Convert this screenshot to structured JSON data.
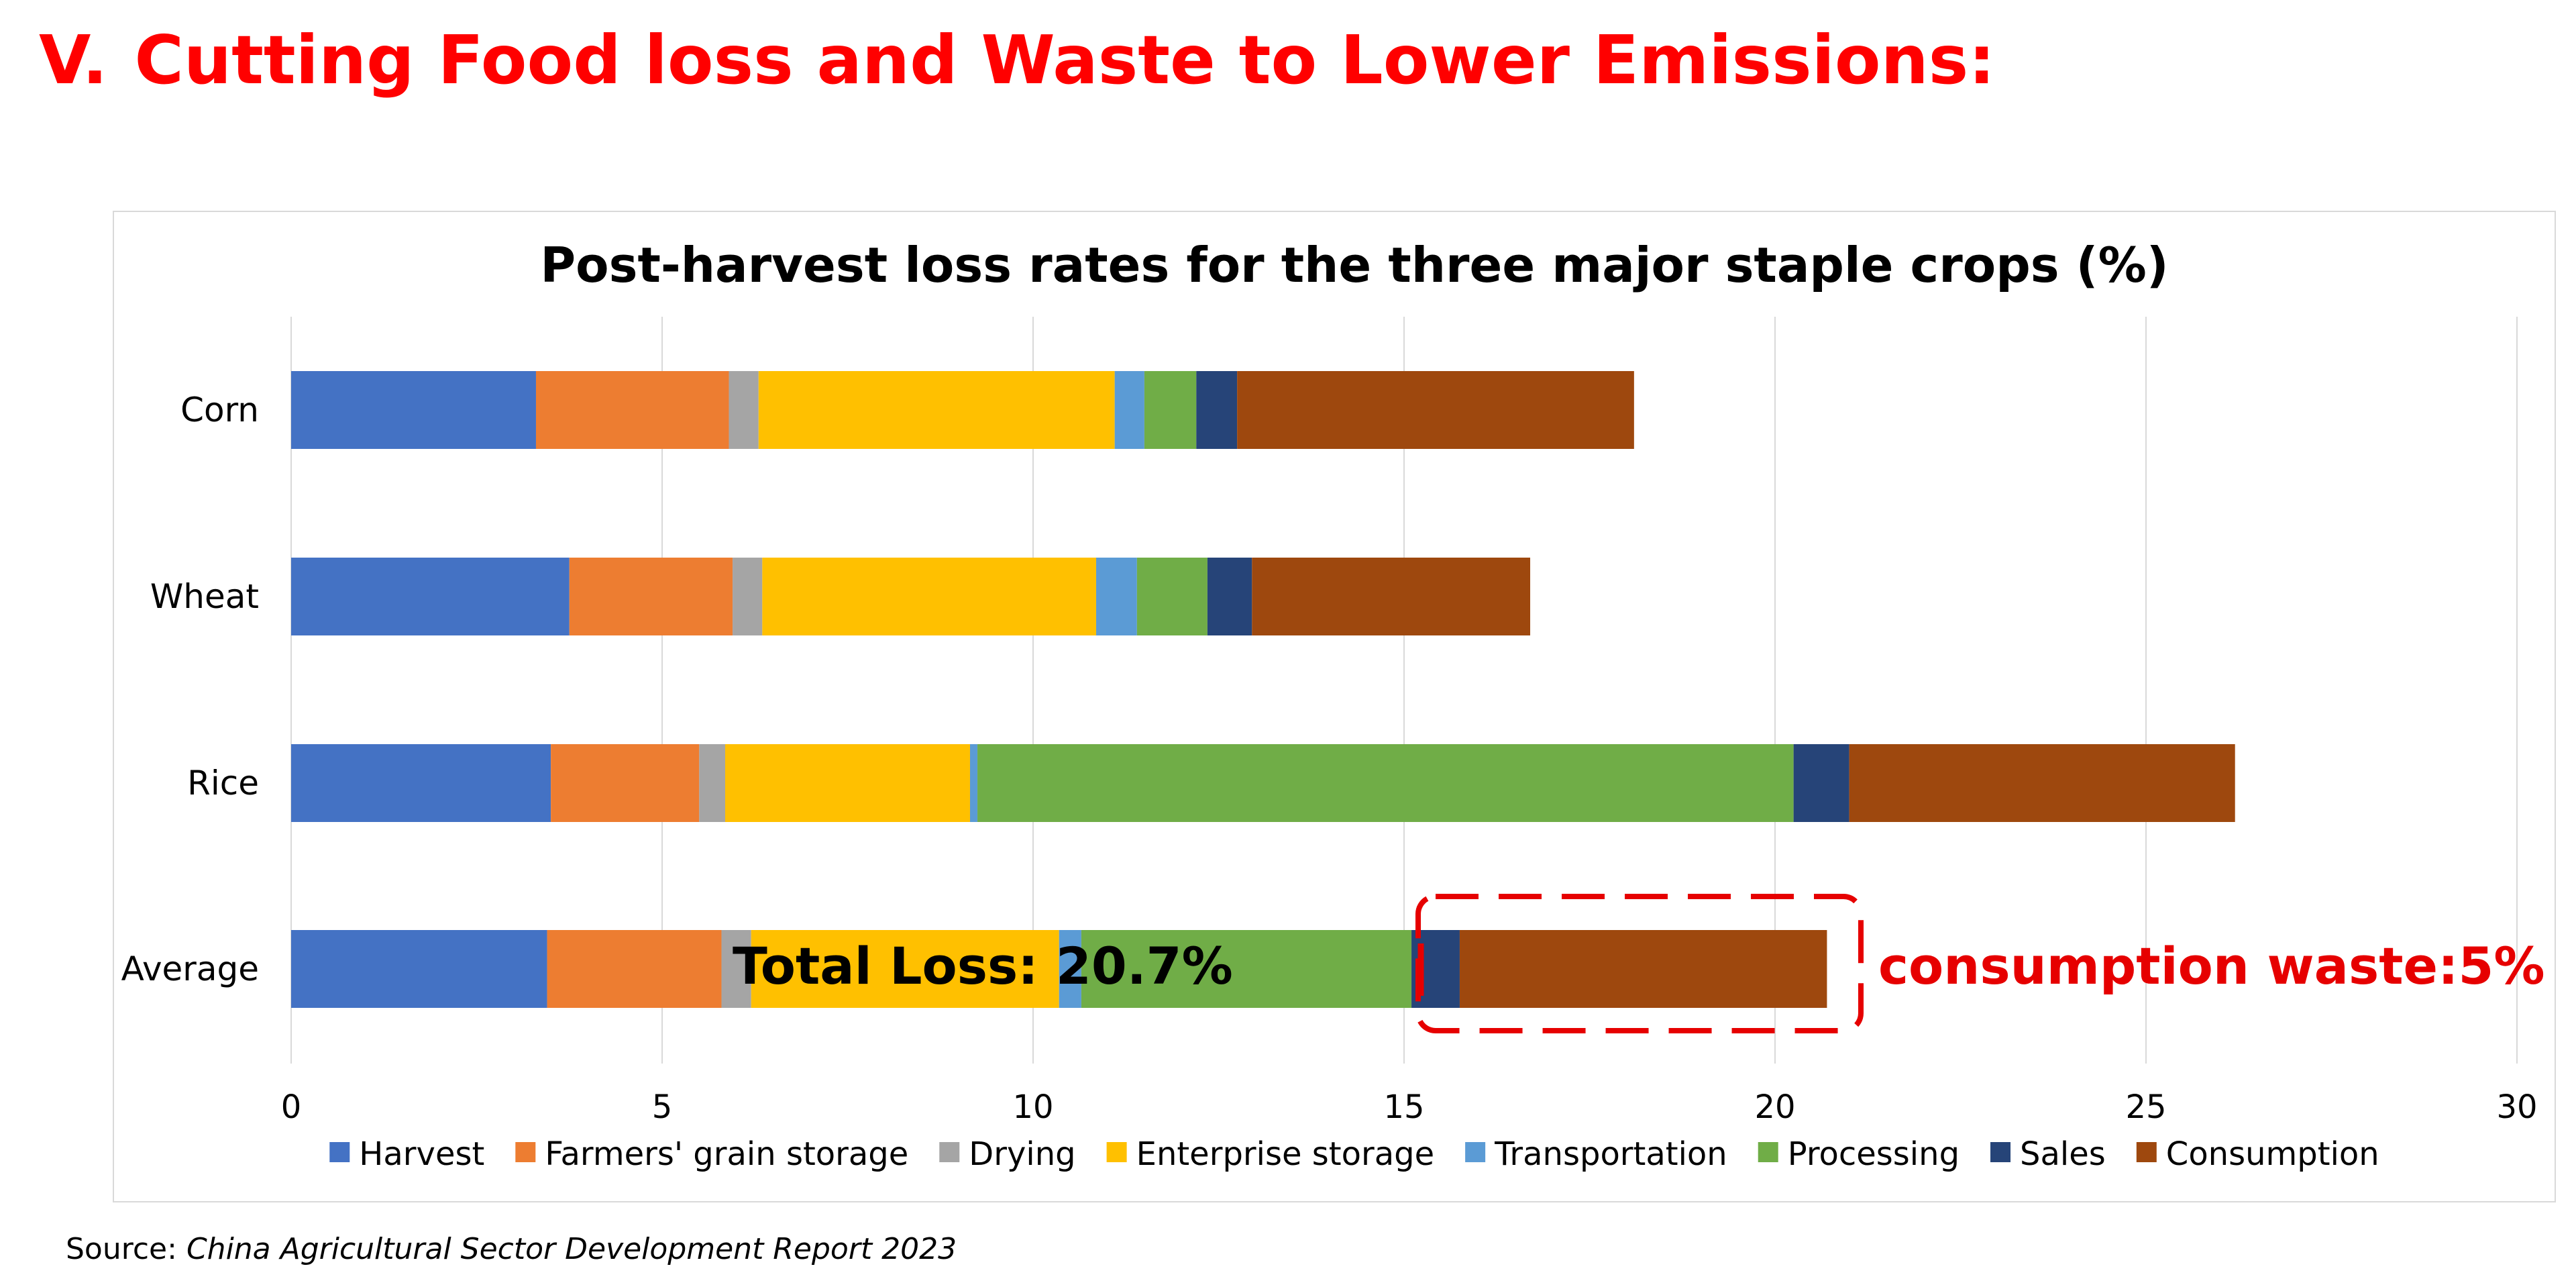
{
  "page": {
    "heading_number": "V.",
    "heading_text": "Cutting Food loss and Waste to Lower Emissions:",
    "source_label": "Source:",
    "source_title": "China Agricultural Sector Development Report 2023"
  },
  "annotations": {
    "total_loss": "Total Loss: 20.7%",
    "consumption_waste": "consumption waste:5%"
  },
  "colors": {
    "annotation": "#e60000"
  },
  "chart_data": {
    "type": "bar",
    "orientation": "horizontal",
    "stacked": true,
    "title": "Post-harvest loss rates for the three major staple crops (%)",
    "categories": [
      "Corn",
      "Wheat",
      "Rice",
      "Average"
    ],
    "xlim": [
      0,
      30
    ],
    "xticks": [
      "0",
      "5",
      "10",
      "15",
      "20",
      "25",
      "30"
    ],
    "grid": "vertical",
    "legend": "bottom",
    "series": [
      {
        "name": "Harvest",
        "color": "#4472c4",
        "values": [
          3.3,
          3.75,
          3.5,
          3.45
        ]
      },
      {
        "name": "Farmers' grain storage",
        "color": "#ed7d31",
        "values": [
          2.6,
          2.2,
          2.0,
          2.35
        ]
      },
      {
        "name": "Drying",
        "color": "#a5a5a5",
        "values": [
          0.4,
          0.4,
          0.35,
          0.4
        ]
      },
      {
        "name": "Enterprise storage",
        "color": "#ffc000",
        "values": [
          4.8,
          4.5,
          3.3,
          4.15
        ]
      },
      {
        "name": "Transportation",
        "color": "#5b9bd5",
        "values": [
          0.4,
          0.55,
          0.1,
          0.3
        ]
      },
      {
        "name": "Processing",
        "color": "#70ad47",
        "values": [
          0.7,
          0.95,
          11.0,
          4.45
        ]
      },
      {
        "name": "Sales",
        "color": "#264478",
        "values": [
          0.55,
          0.6,
          0.75,
          0.65
        ]
      },
      {
        "name": "Consumption",
        "color": "#9e480e",
        "values": [
          5.35,
          3.75,
          5.2,
          4.95
        ]
      }
    ]
  }
}
